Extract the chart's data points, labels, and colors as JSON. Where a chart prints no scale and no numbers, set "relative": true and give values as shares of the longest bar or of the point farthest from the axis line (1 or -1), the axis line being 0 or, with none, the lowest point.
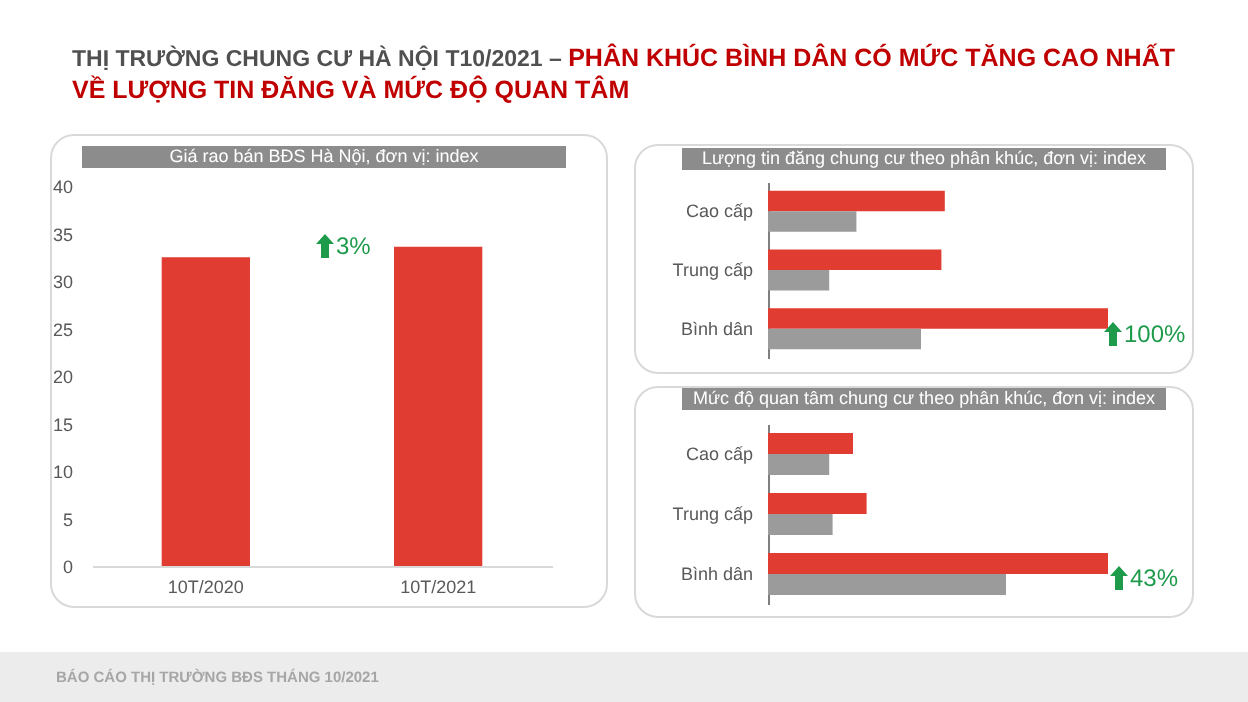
{
  "chart_data": [
    {
      "type": "other",
      "title": "THỊ TRƯỜNG CHUNG CƯ HÀ NỘI T10/2021 –",
      "subtitle": "PHÂN KHÚC BÌNH DÂN CÓ MỨC TĂNG CAO NHẤT VỀ LƯỢNG TIN ĐĂNG VÀ MỨC ĐỘ QUAN TÂM",
      "annotations": [
        "BÁO CÁO THỊ TRƯỜNG BĐS THÁNG 10/2021"
      ]
    },
    {
      "type": "bar",
      "title": "Giá rao bán BĐS Hà Nội, đơn vị: index",
      "categories": [
        "10T/2020",
        "10T/2021"
      ],
      "values": [
        32.5,
        33.6
      ],
      "color": "#e03c31",
      "ylim": [
        0,
        40
      ],
      "yticks": [
        0,
        5,
        10,
        15,
        20,
        25,
        30,
        35,
        40
      ],
      "annotations": [
        "3%"
      ]
    },
    {
      "type": "bar",
      "orientation": "horizontal",
      "relative": true,
      "title": "Lượng tin đăng chung cư theo phân khúc, đơn vị: index",
      "categories": [
        "Cao cấp",
        "Trung cấp",
        "Bình dân"
      ],
      "series": [
        {
          "color": "#e03c31",
          "values": [
            0.52,
            0.51,
            1
          ]
        },
        {
          "color": "#9b9b9b",
          "values": [
            0.26,
            0.18,
            0.45
          ]
        }
      ],
      "annotations": [
        "100%"
      ]
    },
    {
      "type": "bar",
      "orientation": "horizontal",
      "relative": true,
      "title": "Mức độ quan tâm chung cư theo phân khúc, đơn vị: index",
      "categories": [
        "Cao cấp",
        "Trung cấp",
        "Bình dân"
      ],
      "series": [
        {
          "color": "#e03c31",
          "values": [
            0.25,
            0.29,
            1
          ]
        },
        {
          "color": "#9b9b9b",
          "values": [
            0.18,
            0.19,
            0.7
          ]
        }
      ],
      "annotations": [
        "43%"
      ]
    }
  ]
}
